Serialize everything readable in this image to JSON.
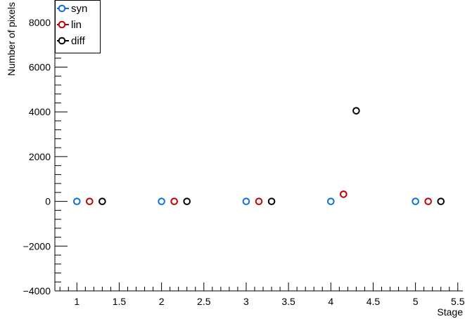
{
  "chart_data": {
    "type": "scatter",
    "xlabel": "Stage",
    "ylabel": "Number of pixels",
    "xlim": [
      0.74,
      5.56
    ],
    "ylim": [
      -4000,
      9000
    ],
    "x_ticks": [
      "1",
      "1.5",
      "2",
      "2.5",
      "3",
      "3.5",
      "4",
      "4.5",
      "5",
      "5.5"
    ],
    "y_ticks": [
      "−4000",
      "−2000",
      "0",
      "2000",
      "4000",
      "6000",
      "8000"
    ],
    "legend_position": "top-left",
    "grid": false,
    "series": [
      {
        "name": "syn",
        "color": "#0b6fdc",
        "points": [
          {
            "x": 1,
            "y": 0
          },
          {
            "x": 2,
            "y": 0
          },
          {
            "x": 3,
            "y": 0
          },
          {
            "x": 4,
            "y": 0
          },
          {
            "x": 5,
            "y": 0
          }
        ]
      },
      {
        "name": "lin",
        "color": "#c00000",
        "points": [
          {
            "x": 1.15,
            "y": 0
          },
          {
            "x": 2.15,
            "y": 0
          },
          {
            "x": 3.15,
            "y": 0
          },
          {
            "x": 4.15,
            "y": 320
          },
          {
            "x": 5.15,
            "y": 0
          }
        ]
      },
      {
        "name": "diff",
        "color": "#000000",
        "points": [
          {
            "x": 1.3,
            "y": 0
          },
          {
            "x": 2.3,
            "y": 0
          },
          {
            "x": 3.3,
            "y": 0
          },
          {
            "x": 4.3,
            "y": 4050
          },
          {
            "x": 5.3,
            "y": 0
          }
        ]
      }
    ]
  }
}
